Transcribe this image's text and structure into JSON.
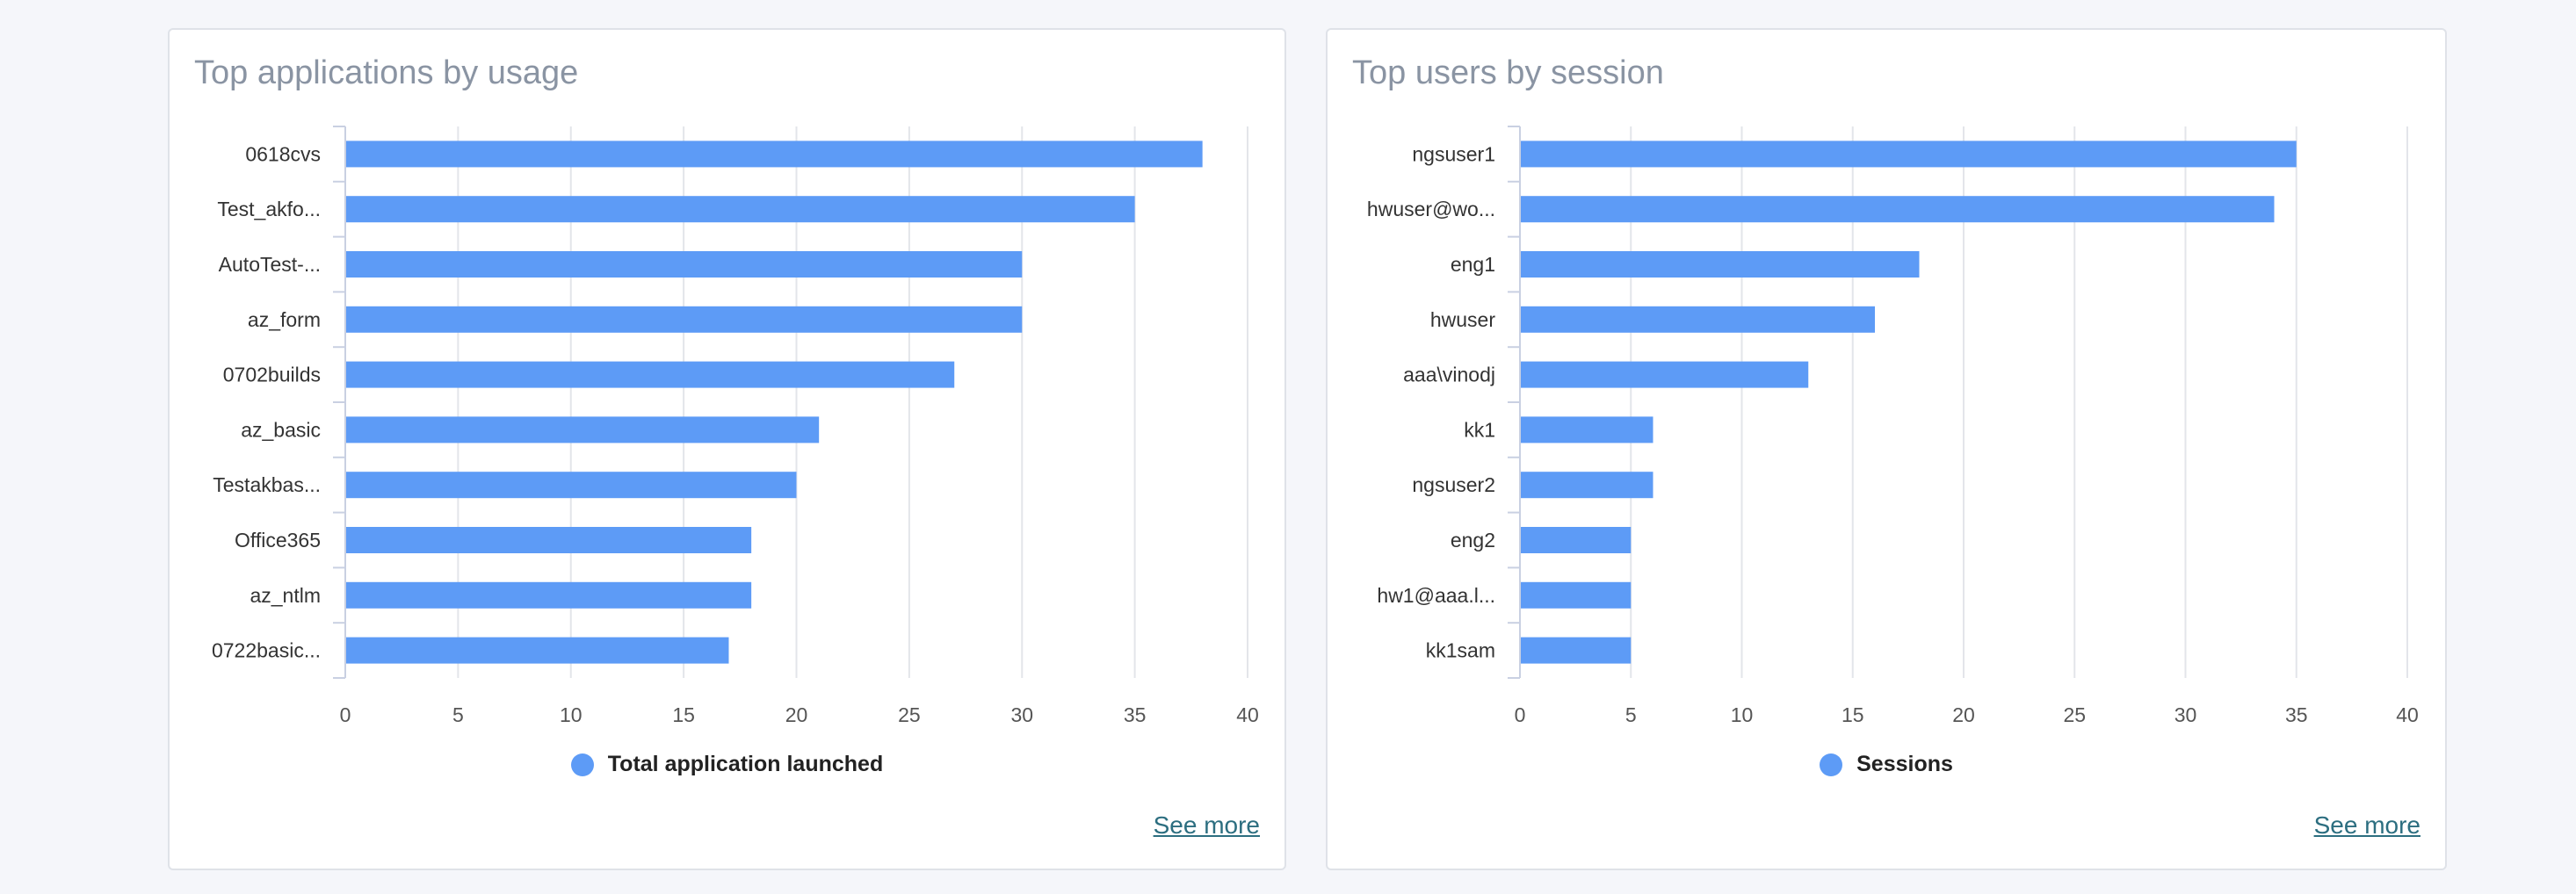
{
  "colors": {
    "bar": "#5d9bf6",
    "grid": "#e3e5ea",
    "axis": "#c9d0e2",
    "link": "#2c6e80"
  },
  "chart_data": [
    {
      "type": "bar",
      "orientation": "horizontal",
      "title": "Top applications by usage",
      "categories": [
        "0618cvs",
        "Test_akfo...",
        "AutoTest-...",
        "az_form",
        "0702builds",
        "az_basic",
        "Testakbas...",
        "Office365",
        "az_ntlm",
        "0722basic..."
      ],
      "series": [
        {
          "name": "Total application launched",
          "values": [
            38,
            35,
            30,
            30,
            27,
            21,
            20,
            18,
            18,
            17
          ]
        }
      ],
      "xlim": [
        0,
        40
      ],
      "xticks": [
        "0",
        "5",
        "10",
        "15",
        "20",
        "25",
        "30",
        "35",
        "40"
      ],
      "grid": true,
      "legend": "bottom-center",
      "see_more": "See more"
    },
    {
      "type": "bar",
      "orientation": "horizontal",
      "title": "Top users by session",
      "categories": [
        "ngsuser1",
        "hwuser@wo...",
        "eng1",
        "hwuser",
        "aaa\\vinodj",
        "kk1",
        "ngsuser2",
        "eng2",
        "hw1@aaa.l...",
        "kk1sam"
      ],
      "series": [
        {
          "name": "Sessions",
          "values": [
            35,
            34,
            18,
            16,
            13,
            6,
            6,
            5,
            5,
            5
          ]
        }
      ],
      "xlim": [
        0,
        40
      ],
      "xticks": [
        "0",
        "5",
        "10",
        "15",
        "20",
        "25",
        "30",
        "35",
        "40"
      ],
      "grid": true,
      "legend": "bottom-center",
      "see_more": "See more"
    }
  ]
}
